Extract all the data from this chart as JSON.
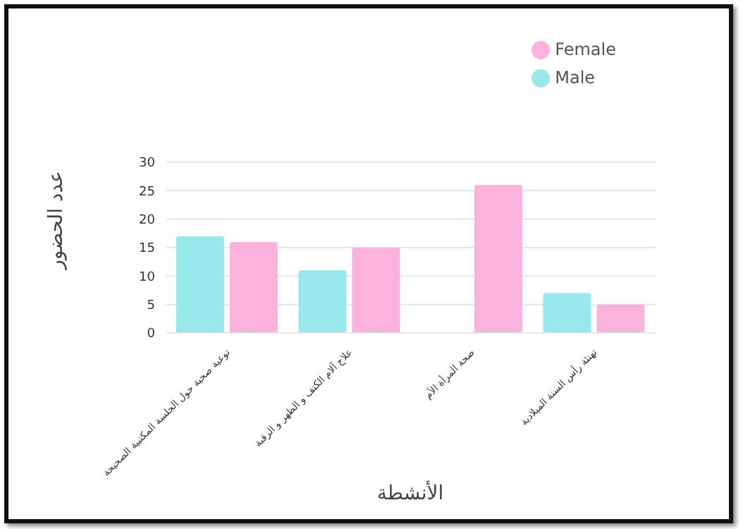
{
  "chart_data": {
    "type": "bar",
    "xlabel": "الأنشطة",
    "ylabel": "عدد الحضور",
    "categories": [
      "توعية صحية حول الجلسة المكتبية الصحيحة",
      "علاج آلام الكتف و الظهر و الرقبة",
      "صحة المرأة الأم",
      "تهنئة رأس السنة الميلادية"
    ],
    "series": [
      {
        "name": "Male",
        "color": "#99e9ec",
        "values": [
          17,
          11,
          0,
          7
        ]
      },
      {
        "name": "Female",
        "color": "#fbb3de",
        "values": [
          16,
          15,
          26,
          5
        ]
      }
    ],
    "ylim": [
      0,
      30
    ],
    "yticks": [
      0,
      5,
      10,
      15,
      20,
      25,
      30
    ],
    "grid": "y",
    "legend": "top right"
  }
}
